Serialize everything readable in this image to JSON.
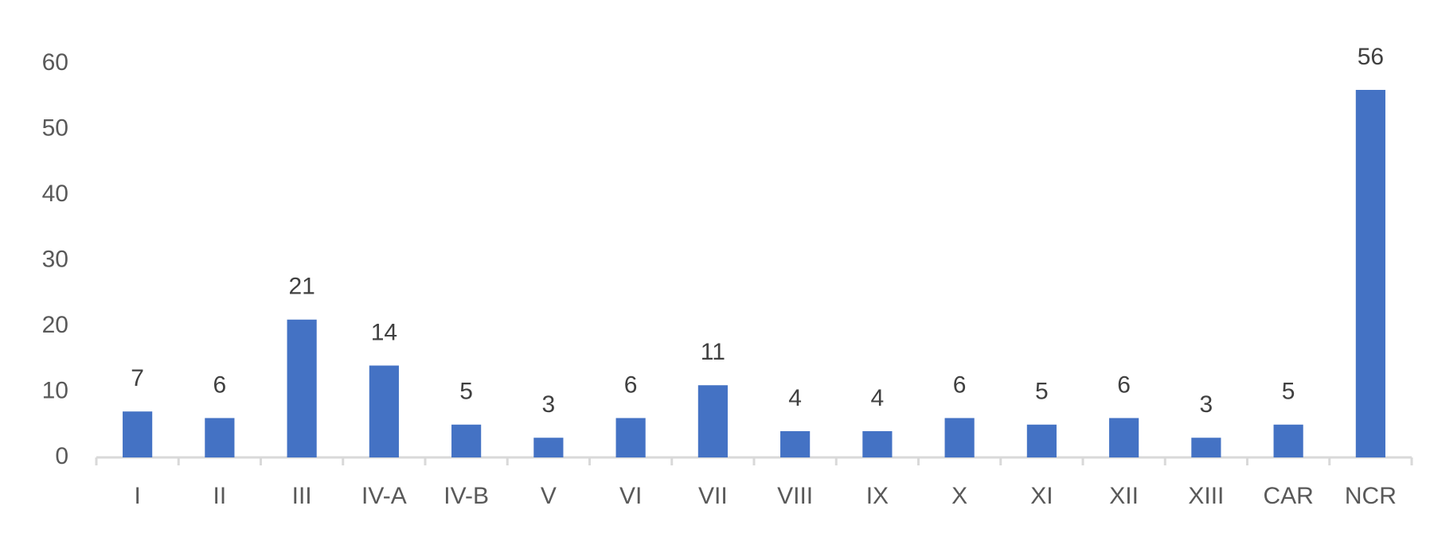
{
  "chart_data": {
    "type": "bar",
    "categories": [
      "I",
      "II",
      "III",
      "IV-A",
      "IV-B",
      "V",
      "VI",
      "VII",
      "VIII",
      "IX",
      "X",
      "XI",
      "XII",
      "XIII",
      "CAR",
      "NCR"
    ],
    "values": [
      7,
      6,
      21,
      14,
      5,
      3,
      6,
      11,
      4,
      4,
      6,
      5,
      6,
      3,
      5,
      56
    ],
    "color": "#4472c4",
    "ylim": [
      0,
      60
    ],
    "yticks": [
      0,
      10,
      20,
      30,
      40,
      50,
      60
    ],
    "grid": false
  }
}
